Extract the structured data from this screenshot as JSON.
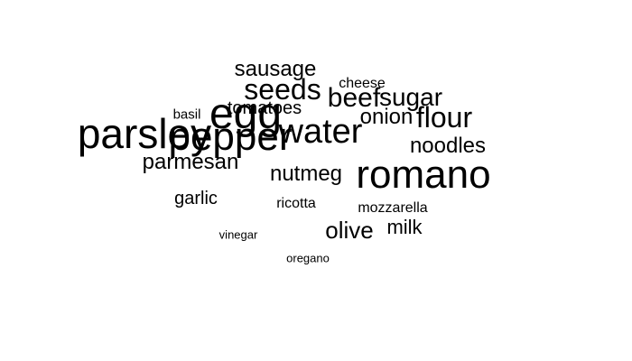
{
  "word_cloud": {
    "words": {
      "parsley": "parsley",
      "egg": "egg",
      "pepper": "pepper",
      "water": "water",
      "sausage": "sausage",
      "seeds": "seeds",
      "cheese": "cheese",
      "beef": "beef",
      "sugar": "sugar",
      "tomatoes": "tomatoes",
      "basil": "basil",
      "onion": "onion",
      "flour": "flour",
      "noodles": "noodles",
      "parmesan": "parmesan",
      "nutmeg": "nutmeg",
      "romano": "romano",
      "garlic": "garlic",
      "ricotta": "ricotta",
      "mozzarella": "mozzarella",
      "olive": "olive",
      "milk": "milk",
      "vinegar": "vinegar",
      "oregano": "oregano"
    },
    "text_color": "#000000",
    "background_color": "#ffffff"
  }
}
